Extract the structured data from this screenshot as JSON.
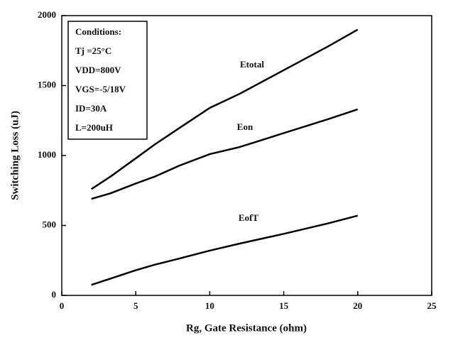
{
  "chart_data": {
    "type": "line",
    "xlabel": "Rg, Gate Resistance (ohm)",
    "ylabel": "Switching Loss (uJ)",
    "x": [
      2,
      3.3,
      5,
      6.3,
      8,
      10,
      12,
      15,
      18,
      20
    ],
    "series": [
      {
        "name": "Etotal",
        "color": "#000000",
        "values": [
          760,
          850,
          980,
          1080,
          1200,
          1340,
          1440,
          1610,
          1780,
          1900
        ]
      },
      {
        "name": "Eon",
        "color": "#000000",
        "values": [
          690,
          730,
          800,
          850,
          930,
          1010,
          1060,
          1160,
          1260,
          1330
        ]
      },
      {
        "name": "EofT",
        "color": "#000000",
        "values": [
          75,
          120,
          180,
          220,
          265,
          320,
          370,
          440,
          515,
          570
        ]
      }
    ],
    "annotations": [
      "Conditions:",
      "Tj =25°C",
      "VDD=800V",
      "VGS=-5/18V",
      "ID=30A",
      "L=200uH"
    ],
    "xlim": [
      0,
      25
    ],
    "xticks": [
      0,
      5,
      10,
      15,
      20,
      25
    ],
    "ylim": [
      0,
      2000
    ],
    "yticks": [
      0,
      500,
      1000,
      1500,
      2000
    ]
  }
}
